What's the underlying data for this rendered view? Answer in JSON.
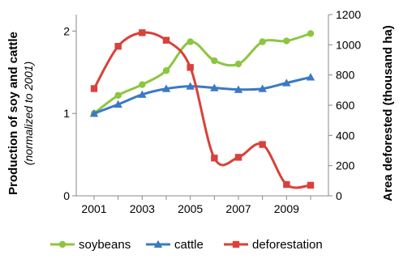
{
  "chart_data": {
    "type": "line",
    "title": "",
    "xlabel": "",
    "x": [
      2001,
      2002,
      2003,
      2004,
      2005,
      2006,
      2007,
      2008,
      2009,
      2010
    ],
    "x_tick_labels": [
      "2001",
      "2003",
      "2005",
      "2007",
      "2009"
    ],
    "y_left": {
      "label": "Production of soy and cattle",
      "sublabel": "(normalized to 2001)",
      "range": [
        0,
        2.2
      ],
      "ticks": [
        0,
        1,
        2
      ],
      "tick_labels": [
        "0",
        "1",
        "2"
      ]
    },
    "y_right": {
      "label": "Area deforested (thousand ha)",
      "range": [
        0,
        1200
      ],
      "ticks": [
        0,
        200,
        400,
        600,
        800,
        1000,
        1200
      ],
      "tick_labels": [
        "0",
        "200",
        "400",
        "600",
        "800",
        "1000",
        "1200"
      ]
    },
    "grid": false,
    "legend_position": "bottom",
    "series": [
      {
        "name": "soybeans",
        "axis": "left",
        "color": "#8cc63f",
        "marker": "circle",
        "values": [
          1.0,
          1.22,
          1.35,
          1.52,
          1.87,
          1.64,
          1.6,
          1.87,
          1.88,
          1.97
        ]
      },
      {
        "name": "cattle",
        "axis": "left",
        "color": "#3b79c4",
        "marker": "triangle",
        "values": [
          1.0,
          1.11,
          1.23,
          1.3,
          1.33,
          1.31,
          1.29,
          1.3,
          1.37,
          1.44
        ]
      },
      {
        "name": "deforestation",
        "axis": "right",
        "color": "#d9413a",
        "marker": "square",
        "values": [
          710,
          990,
          1080,
          1030,
          850,
          250,
          255,
          340,
          75,
          70
        ]
      }
    ]
  }
}
